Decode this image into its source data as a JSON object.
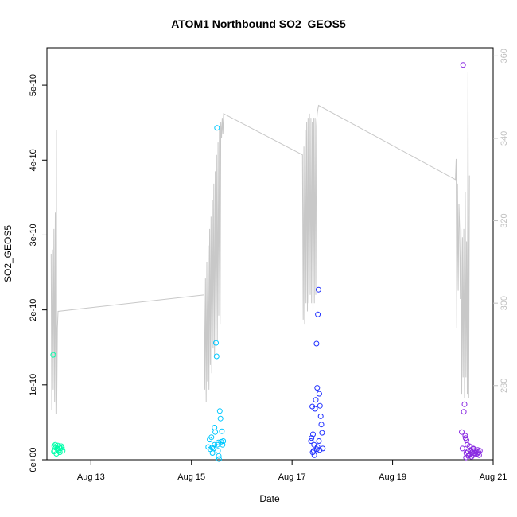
{
  "chart_data": {
    "type": "scatter",
    "title": "ATOM1 Northbound SO2_GEOS5",
    "xlabel": "Date",
    "ylabel": "SO2_GEOS5",
    "xlim": [
      "2016-08-12 03:00",
      "2016-08-21 00:00"
    ],
    "ylim": [
      0,
      5.5e-10
    ],
    "y2lim": [
      262,
      362
    ],
    "x_ticks": [
      {
        "date": "2016-08-13 00:00",
        "label": "Aug 13"
      },
      {
        "date": "2016-08-15 00:00",
        "label": "Aug 15"
      },
      {
        "date": "2016-08-17 00:00",
        "label": "Aug 17"
      },
      {
        "date": "2016-08-19 00:00",
        "label": "Aug 19"
      },
      {
        "date": "2016-08-21 00:00",
        "label": "Aug 21"
      }
    ],
    "y_ticks": [
      {
        "value": 0,
        "label": "0e+00"
      },
      {
        "value": 1e-10,
        "label": "1e-10"
      },
      {
        "value": 2e-10,
        "label": "2e-10"
      },
      {
        "value": 3e-10,
        "label": "3e-10"
      },
      {
        "value": 4e-10,
        "label": "4e-10"
      },
      {
        "value": 5e-10,
        "label": "5e-10"
      }
    ],
    "y2_ticks": [
      {
        "value": 280,
        "label": "280"
      },
      {
        "value": 300,
        "label": "300"
      },
      {
        "value": 320,
        "label": "320"
      },
      {
        "value": 340,
        "label": "340"
      },
      {
        "value": 360,
        "label": "360"
      }
    ],
    "colors": {
      "flight1": "#00ffaa",
      "flight2": "#00c8ff",
      "flight3": "#2030ff",
      "flight4": "#8a2be2",
      "line": "#c8c8c8",
      "right_axis": "#c0c0c0"
    },
    "series": [
      {
        "color_key": "flight1",
        "points": [
          [
            "2016-08-12 06:00",
            1.4e-10
          ],
          [
            "2016-08-12 06:30",
            1.8e-11
          ],
          [
            "2016-08-12 06:50",
            1.2e-11
          ],
          [
            "2016-08-12 07:10",
            1.6e-11
          ],
          [
            "2016-08-12 07:30",
            8e-12
          ],
          [
            "2016-08-12 07:50",
            1.5e-11
          ],
          [
            "2016-08-12 08:10",
            1.9e-11
          ],
          [
            "2016-08-12 08:30",
            1.3e-11
          ],
          [
            "2016-08-12 08:50",
            1.7e-11
          ],
          [
            "2016-08-12 09:10",
            1e-11
          ],
          [
            "2016-08-12 09:30",
            1.5e-11
          ],
          [
            "2016-08-12 09:50",
            1.8e-11
          ],
          [
            "2016-08-12 10:10",
            1.6e-11
          ],
          [
            "2016-08-12 10:30",
            1.2e-11
          ],
          [
            "2016-08-12 06:20",
            1.1e-11
          ],
          [
            "2016-08-12 07:00",
            2e-11
          ],
          [
            "2016-08-12 08:00",
            1.4e-11
          ],
          [
            "2016-08-12 09:00",
            1.7e-11
          ]
        ]
      },
      {
        "color_key": "flight2",
        "points": [
          [
            "2016-08-15 08:00",
            1.7e-11
          ],
          [
            "2016-08-15 08:40",
            2.7e-11
          ],
          [
            "2016-08-15 09:00",
            1.4e-11
          ],
          [
            "2016-08-15 09:30",
            3e-11
          ],
          [
            "2016-08-15 10:00",
            9e-12
          ],
          [
            "2016-08-15 10:30",
            1.5e-11
          ],
          [
            "2016-08-15 11:00",
            4.3e-11
          ],
          [
            "2016-08-15 11:20",
            3.7e-11
          ],
          [
            "2016-08-15 11:40",
            1.56e-10
          ],
          [
            "2016-08-15 12:00",
            1.38e-10
          ],
          [
            "2016-08-15 12:10",
            4.43e-10
          ],
          [
            "2016-08-15 12:20",
            2e-11
          ],
          [
            "2016-08-15 12:40",
            1.2e-11
          ],
          [
            "2016-08-15 13:00",
            5e-12
          ],
          [
            "2016-08-15 13:10",
            1e-12
          ],
          [
            "2016-08-15 13:30",
            6.5e-11
          ],
          [
            "2016-08-15 13:50",
            5.5e-11
          ],
          [
            "2016-08-15 14:10",
            2.4e-11
          ],
          [
            "2016-08-15 14:30",
            3.8e-11
          ],
          [
            "2016-08-15 14:50",
            2e-11
          ],
          [
            "2016-08-15 15:10",
            2.5e-11
          ],
          [
            "2016-08-15 11:00",
            2e-11
          ],
          [
            "2016-08-15 09:50",
            1.6e-11
          ],
          [
            "2016-08-15 12:50",
            2.3e-11
          ]
        ]
      },
      {
        "color_key": "flight3",
        "points": [
          [
            "2016-08-17 09:00",
            2.5e-11
          ],
          [
            "2016-08-17 09:20",
            2.9e-11
          ],
          [
            "2016-08-17 09:40",
            7.1e-11
          ],
          [
            "2016-08-17 10:00",
            3.4e-11
          ],
          [
            "2016-08-17 10:20",
            1.2e-11
          ],
          [
            "2016-08-17 10:40",
            6e-12
          ],
          [
            "2016-08-17 11:00",
            6.8e-11
          ],
          [
            "2016-08-17 11:20",
            8e-11
          ],
          [
            "2016-08-17 11:40",
            1.55e-10
          ],
          [
            "2016-08-17 12:00",
            9.6e-11
          ],
          [
            "2016-08-17 12:20",
            1.94e-10
          ],
          [
            "2016-08-17 12:40",
            2.27e-10
          ],
          [
            "2016-08-17 13:00",
            8.8e-11
          ],
          [
            "2016-08-17 13:20",
            7.2e-11
          ],
          [
            "2016-08-17 13:40",
            5.8e-11
          ],
          [
            "2016-08-17 14:00",
            4.7e-11
          ],
          [
            "2016-08-17 14:20",
            3.6e-11
          ],
          [
            "2016-08-17 14:40",
            1.5e-11
          ],
          [
            "2016-08-17 10:30",
            2e-11
          ],
          [
            "2016-08-17 11:50",
            1.4e-11
          ],
          [
            "2016-08-17 12:10",
            1.7e-11
          ],
          [
            "2016-08-17 09:50",
            1e-11
          ],
          [
            "2016-08-17 13:10",
            1.3e-11
          ],
          [
            "2016-08-17 12:50",
            2.5e-11
          ]
        ]
      },
      {
        "color_key": "flight4",
        "points": [
          [
            "2016-08-20 09:00",
            3.7e-11
          ],
          [
            "2016-08-20 09:20",
            1.5e-11
          ],
          [
            "2016-08-20 09:40",
            5.27e-10
          ],
          [
            "2016-08-20 10:00",
            6.4e-11
          ],
          [
            "2016-08-20 10:20",
            7.4e-11
          ],
          [
            "2016-08-20 10:40",
            3.2e-11
          ],
          [
            "2016-08-20 11:00",
            3e-12
          ],
          [
            "2016-08-20 11:20",
            2.6e-11
          ],
          [
            "2016-08-20 11:40",
            2e-11
          ],
          [
            "2016-08-20 12:00",
            1.1e-11
          ],
          [
            "2016-08-20 12:20",
            6e-12
          ],
          [
            "2016-08-20 12:40",
            1.8e-11
          ],
          [
            "2016-08-20 13:00",
            8e-12
          ],
          [
            "2016-08-20 13:20",
            1.3e-11
          ],
          [
            "2016-08-20 13:40",
            4e-12
          ],
          [
            "2016-08-20 14:00",
            1e-11
          ],
          [
            "2016-08-20 14:20",
            6e-12
          ],
          [
            "2016-08-20 14:40",
            1.4e-11
          ],
          [
            "2016-08-20 15:00",
            9e-12
          ],
          [
            "2016-08-20 15:20",
            1.2e-11
          ],
          [
            "2016-08-20 15:40",
            7e-12
          ],
          [
            "2016-08-20 16:00",
            1.1e-11
          ],
          [
            "2016-08-20 16:20",
            8e-12
          ],
          [
            "2016-08-20 16:40",
            1.3e-11
          ],
          [
            "2016-08-20 17:00",
            1e-11
          ],
          [
            "2016-08-20 17:20",
            6e-12
          ],
          [
            "2016-08-20 17:40",
            1.2e-11
          ],
          [
            "2016-08-20 11:10",
            9e-12
          ],
          [
            "2016-08-20 12:10",
            5e-12
          ],
          [
            "2016-08-20 13:10",
            7e-12
          ],
          [
            "2016-08-20 10:50",
            2.9e-11
          ],
          [
            "2016-08-20 14:30",
            1.5e-11
          ]
        ]
      }
    ],
    "line_series": {
      "axis": "right",
      "points": [
        [
          "2016-08-12 05:00",
          312
        ],
        [
          "2016-08-12 05:20",
          274
        ],
        [
          "2016-08-12 05:40",
          313
        ],
        [
          "2016-08-12 06:00",
          279
        ],
        [
          "2016-08-12 06:20",
          318
        ],
        [
          "2016-08-12 06:40",
          276
        ],
        [
          "2016-08-12 07:00",
          322
        ],
        [
          "2016-08-12 07:20",
          273
        ],
        [
          "2016-08-12 07:30",
          342
        ],
        [
          "2016-08-12 07:40",
          273
        ],
        [
          "2016-08-12 08:00",
          294
        ],
        [
          "2016-08-12 08:20",
          298
        ],
        [
          "2016-08-15 06:00",
          302
        ],
        [
          "2016-08-15 06:20",
          279
        ],
        [
          "2016-08-15 06:40",
          306
        ],
        [
          "2016-08-15 07:00",
          276
        ],
        [
          "2016-08-15 07:20",
          310
        ],
        [
          "2016-08-15 07:40",
          281
        ],
        [
          "2016-08-15 08:00",
          314
        ],
        [
          "2016-08-15 08:20",
          279
        ],
        [
          "2016-08-15 08:40",
          318
        ],
        [
          "2016-08-15 09:00",
          285
        ],
        [
          "2016-08-15 09:20",
          321
        ],
        [
          "2016-08-15 09:40",
          283
        ],
        [
          "2016-08-15 10:00",
          325
        ],
        [
          "2016-08-15 10:20",
          289
        ],
        [
          "2016-08-15 10:40",
          329
        ],
        [
          "2016-08-15 11:00",
          287
        ],
        [
          "2016-08-15 11:20",
          332
        ],
        [
          "2016-08-15 11:40",
          293
        ],
        [
          "2016-08-15 12:00",
          336
        ],
        [
          "2016-08-15 12:20",
          291
        ],
        [
          "2016-08-15 12:40",
          339
        ],
        [
          "2016-08-15 13:00",
          297
        ],
        [
          "2016-08-15 13:20",
          342
        ],
        [
          "2016-08-15 13:40",
          295
        ],
        [
          "2016-08-15 14:00",
          344
        ],
        [
          "2016-08-15 14:20",
          340
        ],
        [
          "2016-08-15 14:40",
          345
        ],
        [
          "2016-08-15 15:00",
          341
        ],
        [
          "2016-08-15 15:20",
          346
        ],
        [
          "2016-08-17 05:00",
          336
        ],
        [
          "2016-08-17 05:20",
          296
        ],
        [
          "2016-08-17 05:40",
          338
        ],
        [
          "2016-08-17 06:00",
          295
        ],
        [
          "2016-08-17 06:20",
          342
        ],
        [
          "2016-08-17 06:40",
          300
        ],
        [
          "2016-08-17 07:00",
          344
        ],
        [
          "2016-08-17 07:20",
          298
        ],
        [
          "2016-08-17 07:40",
          345
        ],
        [
          "2016-08-17 08:00",
          300
        ],
        [
          "2016-08-17 08:20",
          346
        ],
        [
          "2016-08-17 08:40",
          302
        ],
        [
          "2016-08-17 09:00",
          345
        ],
        [
          "2016-08-17 09:20",
          300
        ],
        [
          "2016-08-17 09:40",
          344
        ],
        [
          "2016-08-17 10:00",
          298
        ],
        [
          "2016-08-17 10:20",
          345
        ],
        [
          "2016-08-17 10:40",
          300
        ],
        [
          "2016-08-17 11:00",
          345
        ],
        [
          "2016-08-17 11:20",
          302
        ],
        [
          "2016-08-17 11:40",
          343
        ],
        [
          "2016-08-17 12:00",
          346
        ],
        [
          "2016-08-17 12:20",
          347
        ],
        [
          "2016-08-17 12:40",
          348
        ],
        [
          "2016-08-20 06:00",
          330
        ],
        [
          "2016-08-20 06:20",
          335
        ],
        [
          "2016-08-20 06:40",
          294
        ],
        [
          "2016-08-20 07:00",
          329
        ],
        [
          "2016-08-20 07:20",
          303
        ],
        [
          "2016-08-20 07:40",
          324
        ],
        [
          "2016-08-20 08:00",
          318
        ],
        [
          "2016-08-20 08:20",
          301
        ],
        [
          "2016-08-20 08:40",
          318
        ],
        [
          "2016-08-20 09:00",
          278
        ],
        [
          "2016-08-20 09:20",
          316
        ],
        [
          "2016-08-20 09:40",
          282
        ],
        [
          "2016-08-20 10:00",
          318
        ],
        [
          "2016-08-20 10:20",
          277
        ],
        [
          "2016-08-20 10:40",
          327
        ],
        [
          "2016-08-20 11:00",
          282
        ],
        [
          "2016-08-20 11:20",
          315
        ],
        [
          "2016-08-20 11:40",
          278
        ],
        [
          "2016-08-20 12:00",
          356
        ],
        [
          "2016-08-20 12:20",
          277
        ],
        [
          "2016-08-20 12:40",
          331
        ]
      ]
    }
  }
}
